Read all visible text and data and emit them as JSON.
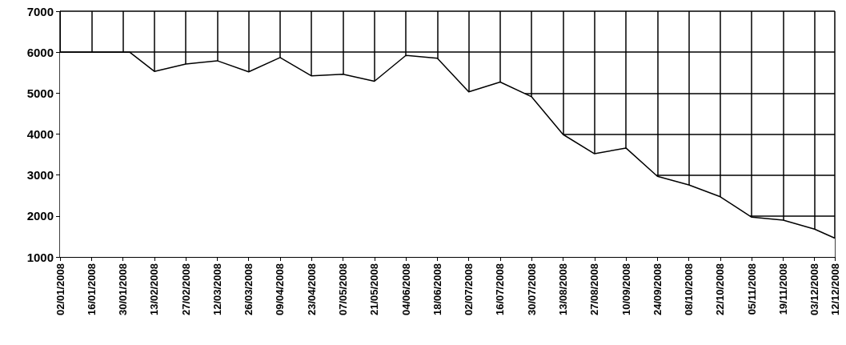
{
  "chart_data": {
    "type": "area",
    "color": "#000000",
    "x": [
      "2008-01-02",
      "2008-01-16",
      "2008-01-30",
      "2008-02-02",
      "2008-02-13",
      "2008-02-27",
      "2008-03-12",
      "2008-03-26",
      "2008-04-09",
      "2008-04-23",
      "2008-05-07",
      "2008-05-21",
      "2008-06-04",
      "2008-06-18",
      "2008-07-02",
      "2008-07-16",
      "2008-07-30",
      "2008-08-13",
      "2008-08-27",
      "2008-09-10",
      "2008-09-24",
      "2008-10-08",
      "2008-10-22",
      "2008-11-05",
      "2008-11-19",
      "2008-12-03",
      "2008-12-12"
    ],
    "values": [
      6000,
      6000,
      6000,
      6000,
      5530,
      5710,
      5790,
      5520,
      5870,
      5420,
      5460,
      5290,
      5920,
      5850,
      5030,
      5270,
      4910,
      3990,
      3520,
      3660,
      2970,
      2760,
      2470,
      1970,
      1900,
      1680,
      1460
    ],
    "xlim": [
      "2008-01-02",
      "2008-12-12"
    ],
    "xticks": [
      {
        "value": "2008-01-02",
        "label": "02/01/2008"
      },
      {
        "value": "2008-01-16",
        "label": "16/01/2008"
      },
      {
        "value": "2008-01-30",
        "label": "30/01/2008"
      },
      {
        "value": "2008-02-13",
        "label": "13/02/2008"
      },
      {
        "value": "2008-02-27",
        "label": "27/02/2008"
      },
      {
        "value": "2008-03-12",
        "label": "12/03/2008"
      },
      {
        "value": "2008-03-26",
        "label": "26/03/2008"
      },
      {
        "value": "2008-04-09",
        "label": "09/04/2008"
      },
      {
        "value": "2008-04-23",
        "label": "23/04/2008"
      },
      {
        "value": "2008-05-07",
        "label": "07/05/2008"
      },
      {
        "value": "2008-05-21",
        "label": "21/05/2008"
      },
      {
        "value": "2008-06-04",
        "label": "04/06/2008"
      },
      {
        "value": "2008-06-18",
        "label": "18/06/2008"
      },
      {
        "value": "2008-07-02",
        "label": "02/07/2008"
      },
      {
        "value": "2008-07-16",
        "label": "16/07/2008"
      },
      {
        "value": "2008-07-30",
        "label": "30/07/2008"
      },
      {
        "value": "2008-08-13",
        "label": "13/08/2008"
      },
      {
        "value": "2008-08-27",
        "label": "27/08/2008"
      },
      {
        "value": "2008-09-10",
        "label": "10/09/2008"
      },
      {
        "value": "2008-09-24",
        "label": "24/09/2008"
      },
      {
        "value": "2008-10-08",
        "label": "08/10/2008"
      },
      {
        "value": "2008-10-22",
        "label": "22/10/2008"
      },
      {
        "value": "2008-11-05",
        "label": "05/11/2008"
      },
      {
        "value": "2008-11-19",
        "label": "19/11/2008"
      },
      {
        "value": "2008-12-03",
        "label": "03/12/2008"
      },
      {
        "value": "2008-12-12",
        "label": "12/12/2008"
      }
    ],
    "ylim": [
      1000,
      7000
    ],
    "yticks": [
      1000,
      2000,
      3000,
      4000,
      5000,
      6000,
      7000
    ],
    "grid": true
  }
}
